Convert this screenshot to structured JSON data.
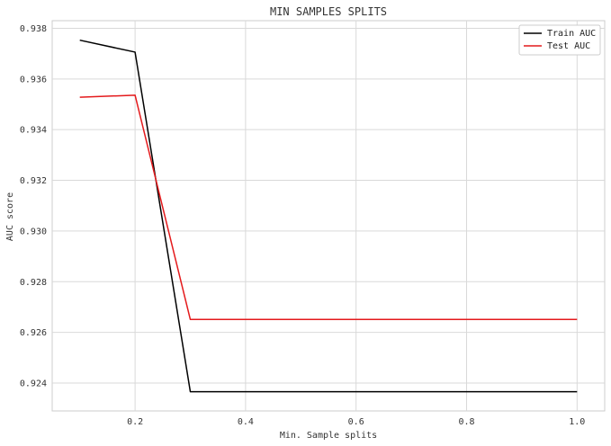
{
  "chart_data": {
    "type": "line",
    "title": "MIN SAMPLES SPLITS",
    "xlabel": "Min. Sample splits",
    "ylabel": "AUC score",
    "xlim": [
      0.05,
      1.05
    ],
    "ylim": [
      0.9229,
      0.9383
    ],
    "xticks": [
      0.2,
      0.4,
      0.6,
      0.8,
      1.0
    ],
    "xtick_labels": [
      "0.2",
      "0.4",
      "0.6",
      "0.8",
      "1.0"
    ],
    "yticks": [
      0.924,
      0.926,
      0.928,
      0.93,
      0.932,
      0.934,
      0.936,
      0.938
    ],
    "ytick_labels": [
      "0.924",
      "0.926",
      "0.928",
      "0.930",
      "0.932",
      "0.934",
      "0.936",
      "0.938"
    ],
    "grid": true,
    "legend_position": "top-right",
    "x": [
      0.1,
      0.2,
      0.3,
      0.4,
      0.5,
      0.6,
      0.7,
      0.8,
      0.9,
      1.0
    ],
    "series": [
      {
        "name": "Train AUC",
        "color": "#000000",
        "values": [
          0.93753,
          0.93706,
          0.92366,
          0.92366,
          0.92366,
          0.92366,
          0.92366,
          0.92366,
          0.92366,
          0.92366
        ]
      },
      {
        "name": "Test AUC",
        "color": "#e41a1c",
        "values": [
          0.93528,
          0.93536,
          0.92651,
          0.92651,
          0.92651,
          0.92651,
          0.92651,
          0.92651,
          0.92651,
          0.92651
        ]
      }
    ]
  }
}
